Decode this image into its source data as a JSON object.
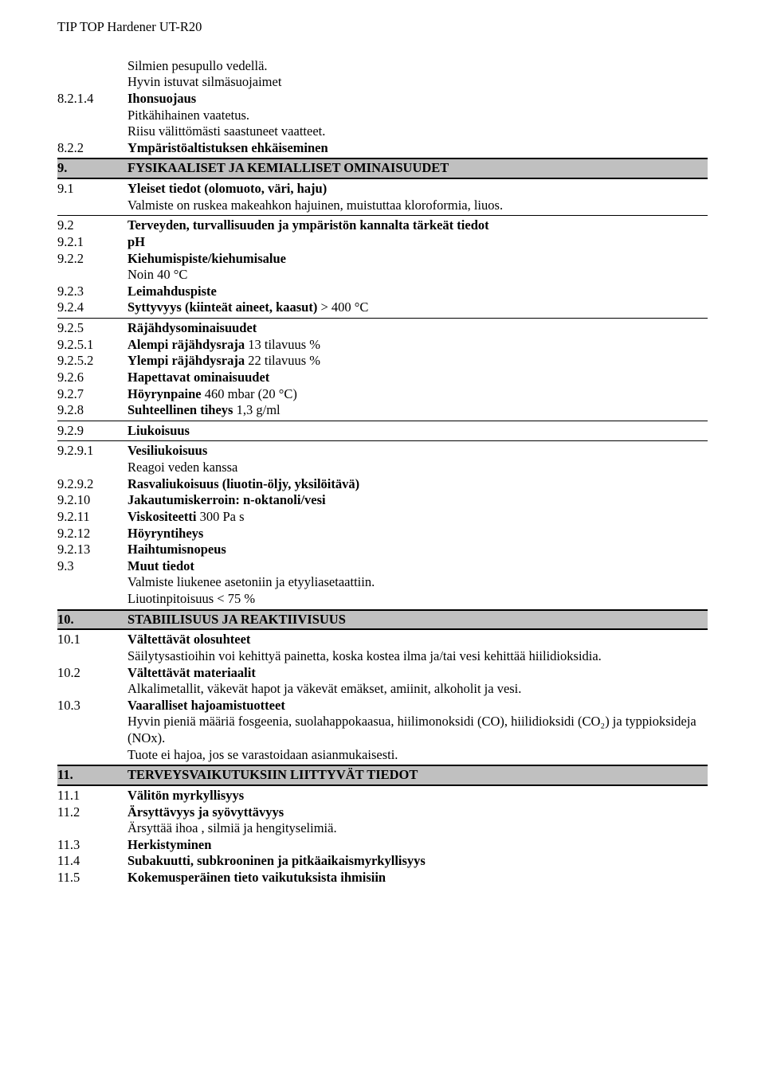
{
  "header": {
    "title": "TIP TOP Hardener UT-R20"
  },
  "blk1_l1": "Silmien pesupullo vedellä.",
  "blk1_l2": "Hyvin istuvat silmäsuojaimet",
  "r_8214_num": "8.2.1.4",
  "r_8214_title": "Ihonsuojaus",
  "blk2_l1": "Pitkähihainen vaatetus.",
  "blk2_l2": "Riisu välittömästi saastuneet vaatteet.",
  "r_822_num": "8.2.2",
  "r_822_title": "Ympäristöaltistuksen ehkäiseminen",
  "s9_num": "9.",
  "s9_title": "FYSIKAALISET JA KEMIALLISET OMINAISUUDET",
  "r_91_num": "9.1",
  "r_91_title": "Yleiset tiedot (olomuoto, väri, haju)",
  "r_91_body": "Valmiste on ruskea makeahkon hajuinen, muistuttaa kloroformia, liuos.",
  "r_92_num": "9.2",
  "r_92_title": "Terveyden, turvallisuuden ja ympäristön kannalta tärkeät tiedot",
  "r_921_num": "9.2.1",
  "r_921_title": "pH",
  "r_922_num": "9.2.2",
  "r_922_title": "Kiehumispiste/kiehumisalue",
  "r_922_body": "Noin 40 °C",
  "r_923_num": "9.2.3",
  "r_923_title": "Leimahduspiste",
  "r_924_num": "9.2.4",
  "r_924_title": "Syttyvyys (kiinteät aineet, kaasut)",
  "r_924_rest": " > 400 °C",
  "r_925_num": "9.2.5",
  "r_925_title": "Räjähdysominaisuudet",
  "r_9251_num": "9.2.5.1",
  "r_9251_title": "Alempi räjähdysraja",
  "r_9251_rest": " 13 tilavuus %",
  "r_9252_num": "9.2.5.2",
  "r_9252_title": "Ylempi räjähdysraja",
  "r_9252_rest": " 22 tilavuus %",
  "r_926_num": "9.2.6",
  "r_926_title": "Hapettavat ominaisuudet",
  "r_927_num": "9.2.7",
  "r_927_title": "Höyrynpaine",
  "r_927_rest": "  460 mbar (20 °C)",
  "r_928_num": "9.2.8",
  "r_928_title": "Suhteellinen tiheys",
  "r_928_rest": "  1,3 g/ml",
  "r_929_num": "9.2.9",
  "r_929_title": "Liukoisuus",
  "r_9291_num": "9.2.9.1",
  "r_9291_title": "Vesiliukoisuus",
  "r_9291_body": "Reagoi veden kanssa",
  "r_9292_num": "9.2.9.2",
  "r_9292_title": "Rasvaliukoisuus (liuotin-öljy, yksilöitävä)",
  "r_9210_num": "9.2.10",
  "r_9210_title": "Jakautumiskerroin: n-oktanoli/vesi",
  "r_9211_num": "9.2.11",
  "r_9211_title": "Viskositeetti",
  "r_9211_rest": " 300 Pa s",
  "r_9212_num": "9.2.12",
  "r_9212_title": "Höyryntiheys",
  "r_9213_num": "9.2.13",
  "r_9213_title": "Haihtumisnopeus",
  "r_93_num": "9.3",
  "r_93_title": "Muut tiedot",
  "r_93_body_l1": "Valmiste liukenee asetoniin ja etyyliasetaattiin.",
  "r_93_body_l2": "Liuotinpitoisuus < 75 %",
  "s10_num": "10.",
  "s10_title": "STABIILISUUS JA REAKTIIVISUUS",
  "r_101_num": "10.1",
  "r_101_title": "Vältettävät olosuhteet",
  "r_101_body": "Säilytysastioihin voi kehittyä painetta, koska kostea ilma ja/tai vesi kehittää hiilidioksidia.",
  "r_102_num": "10.2",
  "r_102_title": "Vältettävät materiaalit",
  "r_102_body": "Alkalimetallit, väkevät hapot ja väkevät emäkset, amiinit, alkoholit ja vesi.",
  "r_103_num": "10.3",
  "r_103_title": "Vaaralliset hajoamistuotteet",
  "r_103_body_l1": "Hyvin pieniä määriä  fosgeenia, suolahappokaasua, hiilimonoksidi (CO), hiilidioksidi (CO₂) ja typpioksideja (NOx).",
  "r_103_body_l2": "Tuote ei hajoa, jos se varastoidaan asianmukaisesti.",
  "s11_num": "11.",
  "s11_title": "TERVEYSVAIKUTUKSIIN LIITTYVÄT TIEDOT",
  "r_111_num": "11.1",
  "r_111_title": "Välitön myrkyllisyys",
  "r_112_num": "11.2",
  "r_112_title": "Ärsyttävyys ja syövyttävyys",
  "r_112_body": "Ärsyttää ihoa , silmiä ja hengityselimiä.",
  "r_113_num": "11.3",
  "r_113_title": "Herkistyminen",
  "r_114_num": "11.4",
  "r_114_title": "Subakuutti, subkrooninen ja pitkäaikaismyrkyllisyys",
  "r_115_num": "11.5",
  "r_115_title": "Kokemusperäinen tieto vaikutuksista ihmisiin"
}
